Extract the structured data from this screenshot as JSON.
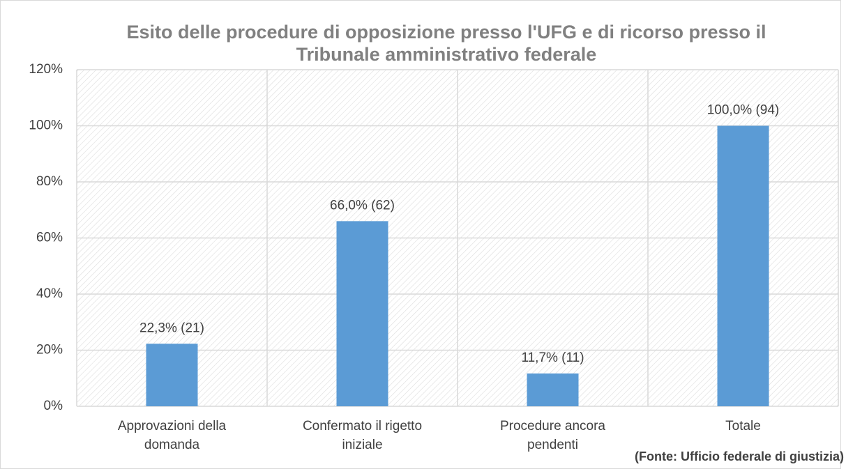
{
  "chart_data": {
    "type": "bar",
    "title": "Esito delle procedure di opposizione presso l'UFG e di ricorso presso il Tribunale amministrativo federale",
    "categories": [
      "Approvazioni della domanda",
      "Confermato il rigetto iniziale",
      "Procedure ancora pendenti",
      "Totale"
    ],
    "values": [
      22.3,
      66.0,
      11.7,
      100.0
    ],
    "value_labels": [
      "22,3% (21)",
      "66,0% (62)",
      "11,7% (11)",
      "100,0% (94)"
    ],
    "color": "#5b9bd5",
    "ylim": [
      0,
      120
    ],
    "yticks": [
      {
        "value": 0,
        "label": "0%"
      },
      {
        "value": 20,
        "label": "20%"
      },
      {
        "value": 40,
        "label": "40%"
      },
      {
        "value": 60,
        "label": "60%"
      },
      {
        "value": 80,
        "label": "80%"
      },
      {
        "value": 100,
        "label": "100%"
      },
      {
        "value": 120,
        "label": "120%"
      }
    ],
    "grid": true,
    "source": "(Fonte: Ufficio federale di giustizia)"
  }
}
